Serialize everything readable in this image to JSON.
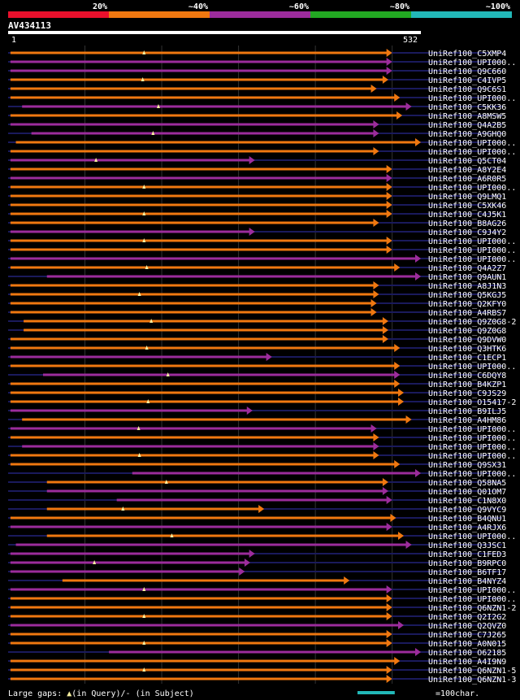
{
  "legend": {
    "identity_labels": [
      "20%",
      "~40%",
      "~60%",
      "~80%",
      "~100%"
    ],
    "identity_colors": [
      "#e8102c",
      "#f07810",
      "#9c2c9c",
      "#22a822",
      "#22b8b8"
    ]
  },
  "query": {
    "name": "AV434113",
    "start": "1",
    "end": "532",
    "length": 532
  },
  "alignment_colors": {
    "orange": "#f07810",
    "purple": "#9c2c9c",
    "dark": "#1a1a5c",
    "line": "#555",
    "tri": "#f8f0a0"
  },
  "hits": [
    {
      "label": "UniRef100_C5XMP4",
      "start": 3,
      "end": 495,
      "color": "orange"
    },
    {
      "label": "UniRef100_UPI000..",
      "start": 3,
      "end": 495,
      "color": "purple"
    },
    {
      "label": "UniRef100_Q9C660",
      "start": 3,
      "end": 495,
      "color": "purple"
    },
    {
      "label": "UniRef100_C4IVP5",
      "start": 3,
      "end": 490,
      "color": "orange"
    },
    {
      "label": "UniRef100_Q9C6S1",
      "start": 3,
      "end": 475,
      "color": "orange"
    },
    {
      "label": "UniRef100_UPI000..",
      "start": 3,
      "end": 505,
      "color": "orange"
    },
    {
      "label": "UniRef100_C5KK36",
      "start": 18,
      "end": 520,
      "color": "purple"
    },
    {
      "label": "UniRef100_A8MSW5",
      "start": 3,
      "end": 508,
      "color": "orange"
    },
    {
      "label": "UniRef100_Q4A2B5",
      "start": 3,
      "end": 478,
      "color": "purple"
    },
    {
      "label": "UniRef100_A9GHQ0",
      "start": 30,
      "end": 478,
      "color": "purple"
    },
    {
      "label": "UniRef100_UPI000..",
      "start": 10,
      "end": 532,
      "color": "orange"
    },
    {
      "label": "UniRef100_UPI000..",
      "start": 3,
      "end": 478,
      "color": "orange"
    },
    {
      "label": "UniRef100_Q5CT04",
      "start": 3,
      "end": 318,
      "color": "purple"
    },
    {
      "label": "UniRef100_A8Y2E4",
      "start": 3,
      "end": 495,
      "color": "orange"
    },
    {
      "label": "UniRef100_A6R0R5",
      "start": 3,
      "end": 495,
      "color": "purple"
    },
    {
      "label": "UniRef100_UPI000..",
      "start": 3,
      "end": 495,
      "color": "orange"
    },
    {
      "label": "UniRef100_Q9LMQ1",
      "start": 3,
      "end": 495,
      "color": "orange"
    },
    {
      "label": "UniRef100_C5XK46",
      "start": 3,
      "end": 495,
      "color": "orange"
    },
    {
      "label": "UniRef100_C4J5K1",
      "start": 3,
      "end": 495,
      "color": "orange"
    },
    {
      "label": "UniRef100_B8AG26",
      "start": 3,
      "end": 478,
      "color": "orange"
    },
    {
      "label": "UniRef100_C9J4Y2",
      "start": 3,
      "end": 318,
      "color": "purple"
    },
    {
      "label": "UniRef100_UPI000..",
      "start": 3,
      "end": 495,
      "color": "orange"
    },
    {
      "label": "UniRef100_UPI000..",
      "start": 3,
      "end": 495,
      "color": "orange"
    },
    {
      "label": "UniRef100_UPI000..",
      "start": 3,
      "end": 532,
      "color": "purple"
    },
    {
      "label": "UniRef100_Q4A2Z7",
      "start": 3,
      "end": 505,
      "color": "orange"
    },
    {
      "label": "UniRef100_Q9AUN1",
      "start": 50,
      "end": 532,
      "color": "purple"
    },
    {
      "label": "UniRef100_A8J1N3",
      "start": 3,
      "end": 478,
      "color": "orange"
    },
    {
      "label": "UniRef100_Q5KGJ5",
      "start": 3,
      "end": 478,
      "color": "orange"
    },
    {
      "label": "UniRef100_Q2KFY0",
      "start": 3,
      "end": 475,
      "color": "orange"
    },
    {
      "label": "UniRef100_A4RBS7",
      "start": 3,
      "end": 475,
      "color": "orange"
    },
    {
      "label": "UniRef100_Q9Z0G8-2",
      "start": 20,
      "end": 490,
      "color": "orange"
    },
    {
      "label": "UniRef100_Q9Z0G8",
      "start": 20,
      "end": 490,
      "color": "orange"
    },
    {
      "label": "UniRef100_Q9DVW0",
      "start": 3,
      "end": 490,
      "color": "orange"
    },
    {
      "label": "UniRef100_Q3HTK6",
      "start": 3,
      "end": 505,
      "color": "orange"
    },
    {
      "label": "UniRef100_C1ECP1",
      "start": 3,
      "end": 340,
      "color": "purple"
    },
    {
      "label": "UniRef100_UPI000..",
      "start": 3,
      "end": 505,
      "color": "orange"
    },
    {
      "label": "UniRef100_C6DQY8",
      "start": 45,
      "end": 505,
      "color": "purple"
    },
    {
      "label": "UniRef100_B4KZP1",
      "start": 3,
      "end": 505,
      "color": "orange"
    },
    {
      "label": "UniRef100_C9JS29",
      "start": 3,
      "end": 510,
      "color": "orange"
    },
    {
      "label": "UniRef100_O15417-2",
      "start": 3,
      "end": 510,
      "color": "orange"
    },
    {
      "label": "UniRef100_B9ILJ5",
      "start": 3,
      "end": 315,
      "color": "purple"
    },
    {
      "label": "UniRef100_A4HM86",
      "start": 18,
      "end": 520,
      "color": "orange"
    },
    {
      "label": "UniRef100_UPI000..",
      "start": 3,
      "end": 475,
      "color": "purple"
    },
    {
      "label": "UniRef100_UPI000..",
      "start": 3,
      "end": 478,
      "color": "orange"
    },
    {
      "label": "UniRef100_UPI000..",
      "start": 18,
      "end": 478,
      "color": "purple"
    },
    {
      "label": "UniRef100_UPI000..",
      "start": 3,
      "end": 478,
      "color": "orange"
    },
    {
      "label": "UniRef100_Q9SX31",
      "start": 3,
      "end": 505,
      "color": "orange"
    },
    {
      "label": "UniRef100_UPI000..",
      "start": 160,
      "end": 532,
      "color": "purple"
    },
    {
      "label": "UniRef100_Q58NA5",
      "start": 50,
      "end": 490,
      "color": "orange"
    },
    {
      "label": "UniRef100_Q01OM7",
      "start": 50,
      "end": 490,
      "color": "purple"
    },
    {
      "label": "UniRef100_C1N8X0",
      "start": 140,
      "end": 495,
      "color": "purple"
    },
    {
      "label": "UniRef100_Q9VYC9",
      "start": 50,
      "end": 330,
      "color": "orange"
    },
    {
      "label": "UniRef100_B4QNU1",
      "start": 3,
      "end": 500,
      "color": "orange"
    },
    {
      "label": "UniRef100_A4RJX6",
      "start": 3,
      "end": 495,
      "color": "purple"
    },
    {
      "label": "UniRef100_UPI000..",
      "start": 50,
      "end": 510,
      "color": "orange"
    },
    {
      "label": "UniRef100_Q3JSC1",
      "start": 10,
      "end": 520,
      "color": "purple"
    },
    {
      "label": "UniRef100_C1FED3",
      "start": 3,
      "end": 318,
      "color": "purple"
    },
    {
      "label": "UniRef100_B9RPC0",
      "start": 3,
      "end": 312,
      "color": "purple"
    },
    {
      "label": "UniRef100_B6TF17",
      "start": 3,
      "end": 305,
      "color": "purple"
    },
    {
      "label": "UniRef100_B4NYZ4",
      "start": 70,
      "end": 440,
      "color": "orange"
    },
    {
      "label": "UniRef100_UPI000..",
      "start": 3,
      "end": 495,
      "color": "purple"
    },
    {
      "label": "UniRef100_UPI000..",
      "start": 3,
      "end": 495,
      "color": "orange"
    },
    {
      "label": "UniRef100_Q6NZN1-2",
      "start": 3,
      "end": 495,
      "color": "orange"
    },
    {
      "label": "UniRef100_Q2I2G2",
      "start": 3,
      "end": 495,
      "color": "orange"
    },
    {
      "label": "UniRef100_Q2QVZ0",
      "start": 3,
      "end": 510,
      "color": "purple"
    },
    {
      "label": "UniRef100_C7J265",
      "start": 3,
      "end": 495,
      "color": "orange"
    },
    {
      "label": "UniRef100_A0N015",
      "start": 3,
      "end": 495,
      "color": "orange"
    },
    {
      "label": "UniRef100_O62185",
      "start": 130,
      "end": 532,
      "color": "purple"
    },
    {
      "label": "UniRef100_A4I9N9",
      "start": 3,
      "end": 505,
      "color": "orange"
    },
    {
      "label": "UniRef100_Q6NZN1-5",
      "start": 3,
      "end": 495,
      "color": "orange"
    },
    {
      "label": "UniRef100_Q6NZN1-3",
      "start": 3,
      "end": 495,
      "color": "orange"
    }
  ],
  "footer": {
    "gaps_prefix": "Large gaps: ",
    "gaps_query": "(in Query)/",
    "gaps_dash": "-",
    "gaps_subject": " (in Subject)",
    "scale_label": "=100char.",
    "scale_chars": 100
  }
}
